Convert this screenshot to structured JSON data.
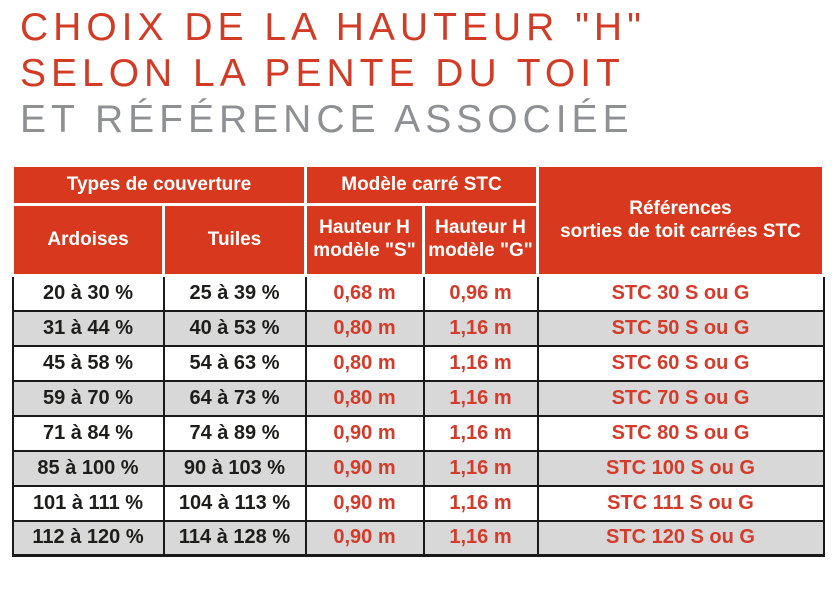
{
  "title": {
    "line1": "CHOIX DE LA HAUTEUR \"H\"",
    "line2": "SELON LA PENTE DU TOIT",
    "line3": "ET RÉFÉRENCE ASSOCIÉE"
  },
  "colors": {
    "title_red": "#d23c26",
    "title_gray": "#8e9093",
    "header_red": "#d8391e",
    "data_red": "#d43b2a",
    "text_dark": "#1d1d1b",
    "stripe_gray": "#d8d8d8",
    "border_dark": "#1a1a1a"
  },
  "table": {
    "group_headers": [
      {
        "label": "Types de couverture",
        "colspan": 2
      },
      {
        "label": "Modèle carré STC",
        "colspan": 2
      }
    ],
    "references_header": "Références\nsorties de toit carrées STC",
    "sub_headers": [
      "Ardoises",
      "Tuiles",
      "Hauteur H\nmodèle \"S\"",
      "Hauteur H\nmodèle \"G\""
    ],
    "rows": [
      [
        "20 à 30 %",
        "25 à 39 %",
        "0,68 m",
        "0,96 m",
        "STC 30 S ou G"
      ],
      [
        "31 à 44 %",
        "40 à 53 %",
        "0,80 m",
        "1,16 m",
        "STC 50 S ou G"
      ],
      [
        "45 à 58 %",
        "54 à 63 %",
        "0,80 m",
        "1,16 m",
        "STC 60 S ou G"
      ],
      [
        "59 à 70 %",
        "64 à 73 %",
        "0,80 m",
        "1,16 m",
        "STC 70 S ou G"
      ],
      [
        "71 à 84 %",
        "74 à 89 %",
        "0,90 m",
        "1,16 m",
        "STC 80 S ou G"
      ],
      [
        "85 à 100 %",
        "90 à 103 %",
        "0,90 m",
        "1,16 m",
        "STC 100 S ou G"
      ],
      [
        "101 à 111 %",
        "104 à 113 %",
        "0,90 m",
        "1,16 m",
        "STC 111 S ou G"
      ],
      [
        "112 à 120 %",
        "114 à 128 %",
        "0,90 m",
        "1,16 m",
        "STC 120 S ou G"
      ]
    ]
  }
}
